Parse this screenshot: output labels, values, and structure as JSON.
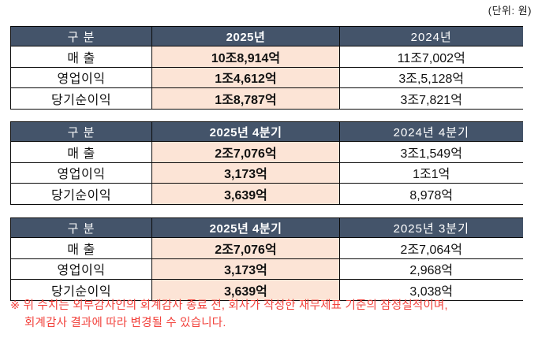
{
  "unit_label": "(단위: 원)",
  "colors": {
    "header_bg": "#44546A",
    "header_text": "#FFFFFF",
    "highlight_bg": "#FCE4D6",
    "note_text": "#F2423C",
    "border": "#0A0A0A"
  },
  "tables": [
    {
      "name": "annual-results",
      "headers": [
        "구 분",
        "2025년",
        "2024년"
      ],
      "rows": [
        {
          "label": "매 출",
          "current": "10조8,914억",
          "previous": "11조7,002억"
        },
        {
          "label": "영업이익",
          "current": "1조4,612억",
          "previous": "3조,5,128억"
        },
        {
          "label": "당기순이익",
          "current": "1조8,787억",
          "previous": "3조7,821억"
        }
      ]
    },
    {
      "name": "quarter-year-over-year",
      "headers": [
        "구 분",
        "2025년 4분기",
        "2024년 4분기"
      ],
      "rows": [
        {
          "label": "매 출",
          "current": "2조7,076억",
          "previous": "3조1,549억"
        },
        {
          "label": "영업이익",
          "current": "3,173억",
          "previous": "1조1억"
        },
        {
          "label": "당기순이익",
          "current": "3,639억",
          "previous": "8,978억"
        }
      ]
    },
    {
      "name": "quarter-over-quarter",
      "headers": [
        "구 분",
        "2025년 4분기",
        "2025년 3분기"
      ],
      "rows": [
        {
          "label": "매 출",
          "current": "2조7,076억",
          "previous": "2조7,064억"
        },
        {
          "label": "영업이익",
          "current": "3,173억",
          "previous": "2,968억"
        },
        {
          "label": "당기순이익",
          "current": "3,639억",
          "previous": "3,038억"
        }
      ]
    }
  ],
  "footnote": {
    "line1": "※ 위 수치는 외부감사인의 회계감사 종료 전, 회사가 작성한 재무제표 기준의 잠정실적이며,",
    "line2": "회계감사 결과에 따라 변경될 수 있습니다."
  }
}
